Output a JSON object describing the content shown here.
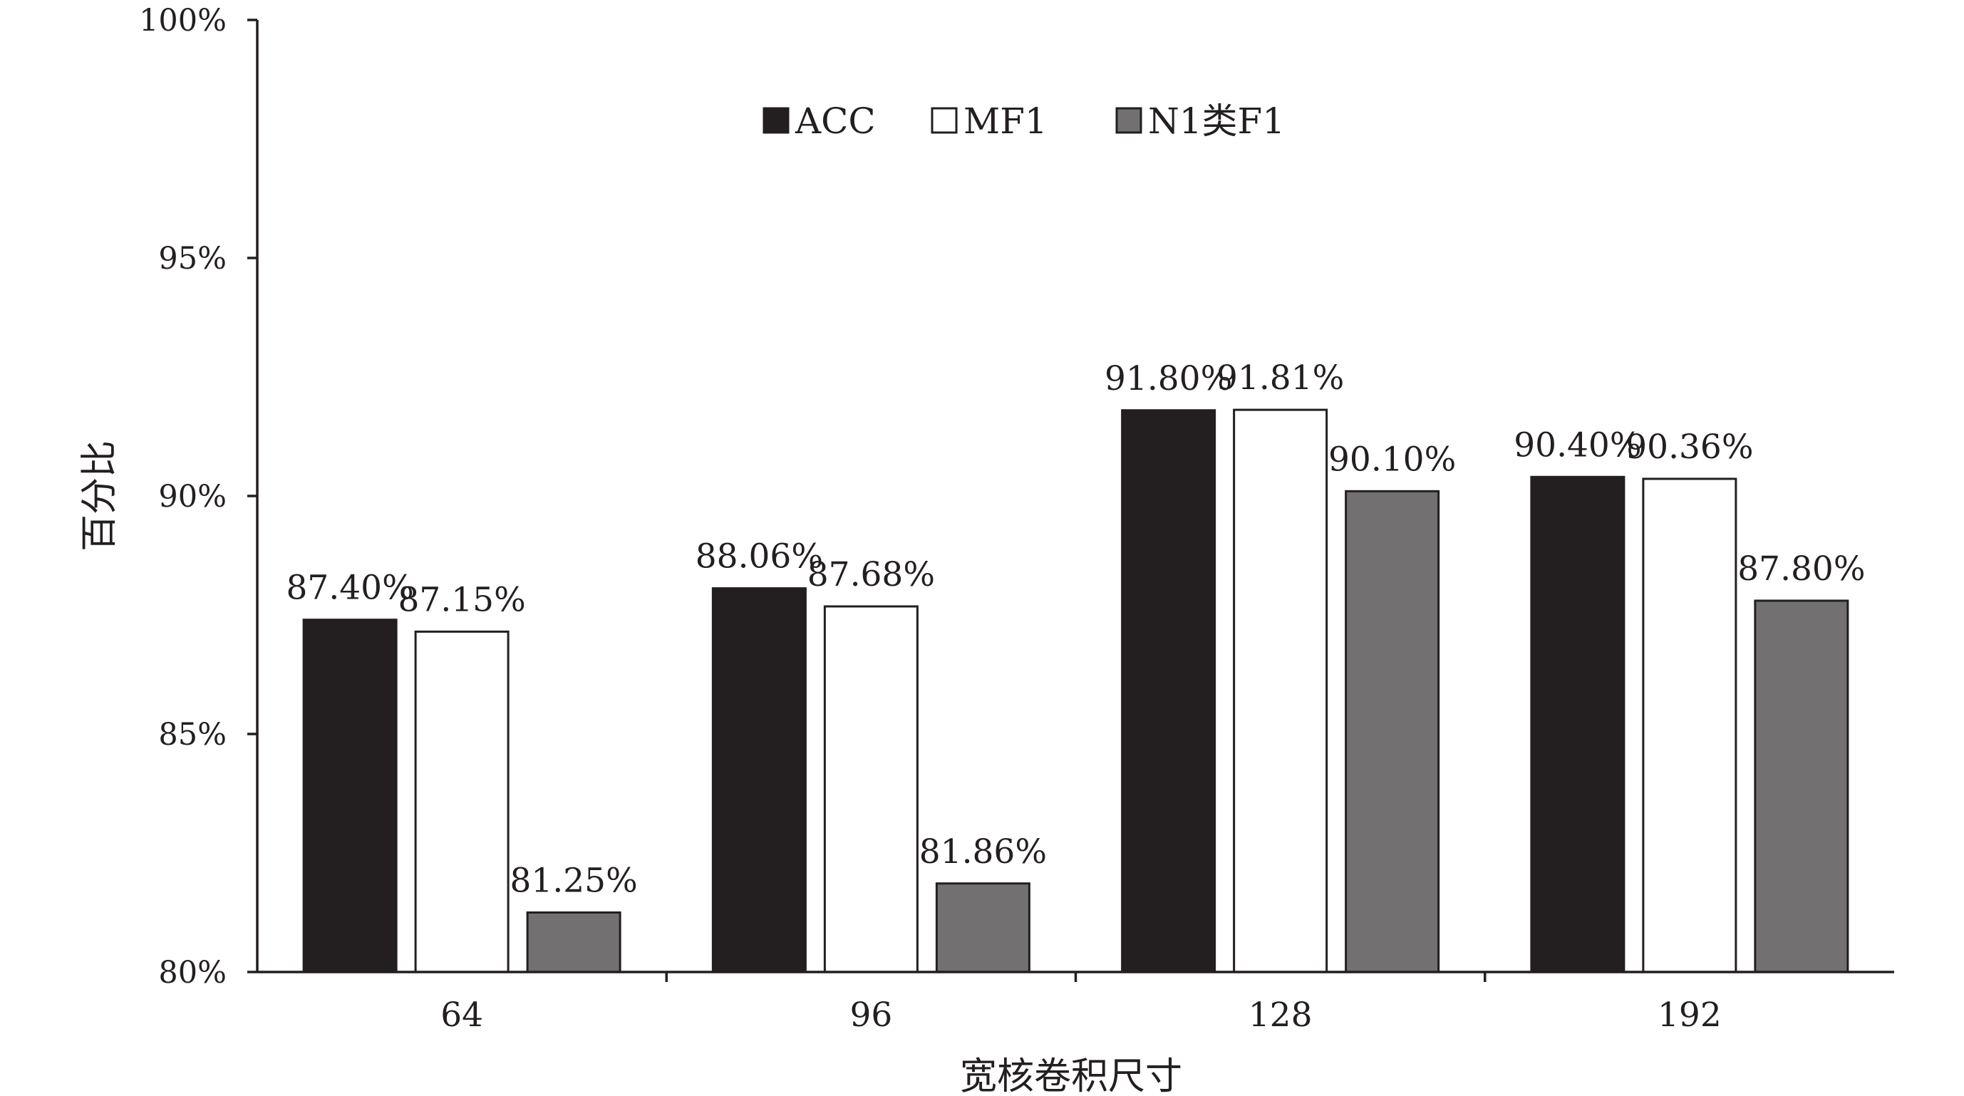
{
  "chart_data": {
    "type": "bar",
    "title": "",
    "xlabel": "宽核卷积尺寸",
    "ylabel": "百分比",
    "categories": [
      "64",
      "96",
      "128",
      "192"
    ],
    "ylim": [
      80,
      100
    ],
    "yticks": [
      "80%",
      "85%",
      "90%",
      "95%",
      "100%"
    ],
    "grid": false,
    "legend_placement": "top-center",
    "series": [
      {
        "name": "ACC",
        "color": "#231f20",
        "values": [
          87.4,
          88.06,
          91.8,
          90.4
        ],
        "labels": [
          "87.40%",
          "88.06%",
          "91.80%",
          "90.40%"
        ]
      },
      {
        "name": "MF1",
        "color": "#ffffff",
        "values": [
          87.15,
          87.68,
          91.81,
          90.36
        ],
        "labels": [
          "87.15%",
          "87.68%",
          "91.81%",
          "90.36%"
        ]
      },
      {
        "name": "N1类F1",
        "color": "#727071",
        "values": [
          81.25,
          81.86,
          90.1,
          87.8
        ],
        "labels": [
          "81.25%",
          "81.86%",
          "90.10%",
          "87.80%"
        ]
      }
    ]
  }
}
